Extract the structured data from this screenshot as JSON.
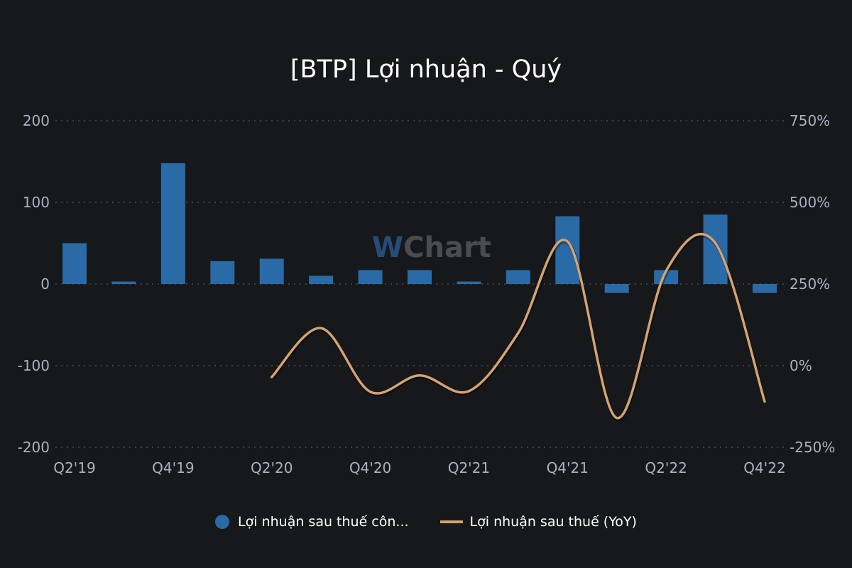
{
  "title": "[BTP] Lợi nhuận - Quý",
  "watermark": {
    "w": "W",
    "text": "Chart"
  },
  "legend": {
    "bar_label": "Lợi nhuận sau thuế côn...",
    "line_label": "Lợi nhuận sau thuế (YoY)"
  },
  "colors": {
    "background": "#17181b",
    "bar": "#2a6aa6",
    "line": "#d4a373",
    "grid": "#3a3d48",
    "tick": "#a9b1c2"
  },
  "chart_data": {
    "type": "bar",
    "title": "[BTP] Lợi nhuận - Quý",
    "categories": [
      "Q2'19",
      "Q3'19",
      "Q4'19",
      "Q1'20",
      "Q2'20",
      "Q3'20",
      "Q4'20",
      "Q1'21",
      "Q2'21",
      "Q3'21",
      "Q4'21",
      "Q1'22",
      "Q2'22",
      "Q3'22",
      "Q4'22"
    ],
    "x_tick_labels": [
      "Q2'19",
      "Q4'19",
      "Q2'20",
      "Q4'20",
      "Q2'21",
      "Q4'21",
      "Q2'22",
      "Q4'22"
    ],
    "series": [
      {
        "name": "Lợi nhuận sau thuế côn...",
        "type": "bar",
        "axis": "left",
        "values": [
          50,
          3,
          148,
          28,
          31,
          10,
          17,
          17,
          3,
          17,
          83,
          -11,
          17,
          85,
          -11
        ]
      },
      {
        "name": "Lợi nhuận sau thuế (YoY)",
        "type": "line",
        "axis": "right",
        "values": [
          null,
          null,
          null,
          null,
          -35,
          115,
          -80,
          -30,
          -78,
          100,
          380,
          -160,
          290,
          375,
          -110
        ]
      }
    ],
    "left_axis": {
      "ticks": [
        200,
        100,
        0,
        -100,
        -200
      ],
      "ylim": [
        -200,
        200
      ]
    },
    "right_axis": {
      "ticks": [
        "750%",
        "500%",
        "250%",
        "0%",
        "-250%"
      ],
      "ylim": [
        -250,
        750
      ]
    },
    "grid": true,
    "legend_position": "bottom"
  }
}
